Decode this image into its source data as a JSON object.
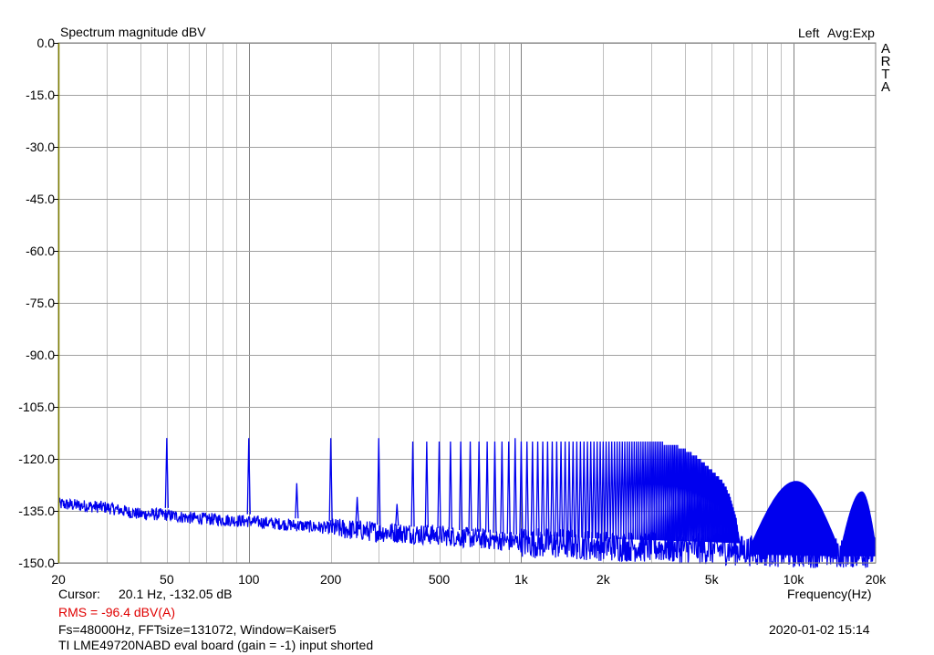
{
  "chart_data": {
    "type": "line",
    "title": "Spectrum magnitude dBV",
    "channel_label": "Left",
    "averaging_label": "Avg:Exp",
    "brand": "ARTA",
    "xlabel": "Frequency(Hz)",
    "x_scale": "log",
    "xlim": [
      20,
      20000
    ],
    "ylim": [
      -150,
      0
    ],
    "grid": true,
    "x_tick_labels": [
      {
        "value": 20,
        "label": "20"
      },
      {
        "value": 50,
        "label": "50"
      },
      {
        "value": 100,
        "label": "100"
      },
      {
        "value": 200,
        "label": "200"
      },
      {
        "value": 500,
        "label": "500"
      },
      {
        "value": 1000,
        "label": "1k"
      },
      {
        "value": 2000,
        "label": "2k"
      },
      {
        "value": 5000,
        "label": "5k"
      },
      {
        "value": 10000,
        "label": "10k"
      },
      {
        "value": 20000,
        "label": "20k"
      }
    ],
    "y_tick_labels": [
      {
        "value": 0,
        "label": "0.0"
      },
      {
        "value": -15,
        "label": "-15.0"
      },
      {
        "value": -30,
        "label": "-30.0"
      },
      {
        "value": -45,
        "label": "-45.0"
      },
      {
        "value": -60,
        "label": "-60.0"
      },
      {
        "value": -75,
        "label": "-75.0"
      },
      {
        "value": -90,
        "label": "-90.0"
      },
      {
        "value": -105,
        "label": "-105.0"
      },
      {
        "value": -120,
        "label": "-120.0"
      },
      {
        "value": -135,
        "label": "-135.0"
      },
      {
        "value": -150,
        "label": "-150.0"
      }
    ],
    "series": [
      {
        "color": "#0000ee",
        "noise_floor": [
          [
            20,
            -133
          ],
          [
            30,
            -134
          ],
          [
            40,
            -136
          ],
          [
            48,
            -136
          ],
          [
            60,
            -137
          ],
          [
            100,
            -138
          ],
          [
            200,
            -140
          ],
          [
            300,
            -141
          ],
          [
            500,
            -142
          ],
          [
            700,
            -143
          ],
          [
            1000,
            -144
          ],
          [
            2000,
            -145
          ],
          [
            5000,
            -146
          ],
          [
            10000,
            -147
          ],
          [
            20000,
            -147
          ]
        ],
        "peaks": [
          {
            "f": 50,
            "db": -114
          },
          {
            "f": 100,
            "db": -114
          },
          {
            "f": 150,
            "db": -127
          },
          {
            "f": 200,
            "db": -114
          },
          {
            "f": 250,
            "db": -131
          },
          {
            "f": 300,
            "db": -114
          },
          {
            "f": 350,
            "db": -133
          },
          {
            "f": 400,
            "db": -115
          },
          {
            "f": 450,
            "db": -115
          },
          {
            "f": 500,
            "db": -115
          },
          {
            "f": 550,
            "db": -115
          },
          {
            "f": 600,
            "db": -115
          },
          {
            "f": 650,
            "db": -115
          },
          {
            "f": 700,
            "db": -115
          },
          {
            "f": 750,
            "db": -115
          },
          {
            "f": 800,
            "db": -115
          },
          {
            "f": 850,
            "db": -115
          },
          {
            "f": 900,
            "db": -115
          },
          {
            "f": 950,
            "db": -114
          },
          {
            "f": 1000,
            "db": -115
          },
          {
            "f": 1050,
            "db": -115
          },
          {
            "f": 1100,
            "db": -115
          },
          {
            "f": 1150,
            "db": -115
          },
          {
            "f": 1200,
            "db": -115
          },
          {
            "f": 1250,
            "db": -115
          },
          {
            "f": 1300,
            "db": -115
          },
          {
            "f": 1350,
            "db": -115
          },
          {
            "f": 1400,
            "db": -115
          },
          {
            "f": 1450,
            "db": -115
          },
          {
            "f": 1500,
            "db": -115
          },
          {
            "f": 1550,
            "db": -115
          },
          {
            "f": 1600,
            "db": -115
          },
          {
            "f": 1650,
            "db": -115
          },
          {
            "f": 1700,
            "db": -115
          },
          {
            "f": 1750,
            "db": -115
          },
          {
            "f": 1800,
            "db": -115
          },
          {
            "f": 1850,
            "db": -115
          },
          {
            "f": 1900,
            "db": -115
          },
          {
            "f": 1950,
            "db": -115
          },
          {
            "f": 2000,
            "db": -115
          },
          {
            "f": 2050,
            "db": -115
          },
          {
            "f": 2100,
            "db": -115
          },
          {
            "f": 2150,
            "db": -115
          },
          {
            "f": 2200,
            "db": -115
          },
          {
            "f": 2250,
            "db": -115
          },
          {
            "f": 2300,
            "db": -115
          },
          {
            "f": 2350,
            "db": -115
          },
          {
            "f": 2400,
            "db": -115
          },
          {
            "f": 2450,
            "db": -115
          },
          {
            "f": 2500,
            "db": -115
          },
          {
            "f": 2550,
            "db": -115
          },
          {
            "f": 2600,
            "db": -115
          },
          {
            "f": 2650,
            "db": -115
          },
          {
            "f": 2700,
            "db": -115
          },
          {
            "f": 2750,
            "db": -115
          },
          {
            "f": 2800,
            "db": -115
          },
          {
            "f": 2850,
            "db": -115
          },
          {
            "f": 2900,
            "db": -115
          },
          {
            "f": 2950,
            "db": -115
          },
          {
            "f": 3000,
            "db": -115
          },
          {
            "f": 3050,
            "db": -115
          },
          {
            "f": 3100,
            "db": -115
          },
          {
            "f": 3150,
            "db": -115
          },
          {
            "f": 3200,
            "db": -115
          },
          {
            "f": 3250,
            "db": -115
          },
          {
            "f": 3300,
            "db": -115
          },
          {
            "f": 3350,
            "db": -116
          },
          {
            "f": 3400,
            "db": -116
          },
          {
            "f": 3450,
            "db": -116
          },
          {
            "f": 3500,
            "db": -116
          },
          {
            "f": 3550,
            "db": -116
          },
          {
            "f": 3600,
            "db": -116
          },
          {
            "f": 3650,
            "db": -116
          },
          {
            "f": 3700,
            "db": -116
          },
          {
            "f": 3750,
            "db": -116
          },
          {
            "f": 3800,
            "db": -117
          },
          {
            "f": 3850,
            "db": -117
          },
          {
            "f": 3900,
            "db": -117
          },
          {
            "f": 3950,
            "db": -117
          },
          {
            "f": 4000,
            "db": -117
          },
          {
            "f": 4050,
            "db": -118
          },
          {
            "f": 4100,
            "db": -118
          },
          {
            "f": 4150,
            "db": -118
          },
          {
            "f": 4200,
            "db": -118
          },
          {
            "f": 4250,
            "db": -119
          },
          {
            "f": 4300,
            "db": -119
          },
          {
            "f": 4350,
            "db": -119
          },
          {
            "f": 4400,
            "db": -119
          },
          {
            "f": 4450,
            "db": -120
          },
          {
            "f": 4500,
            "db": -120
          },
          {
            "f": 4550,
            "db": -120
          },
          {
            "f": 4600,
            "db": -121
          },
          {
            "f": 4650,
            "db": -121
          },
          {
            "f": 4700,
            "db": -121
          },
          {
            "f": 4750,
            "db": -122
          },
          {
            "f": 4800,
            "db": -122
          },
          {
            "f": 4850,
            "db": -122
          },
          {
            "f": 4900,
            "db": -123
          },
          {
            "f": 4950,
            "db": -123
          },
          {
            "f": 5000,
            "db": -123
          },
          {
            "f": 5050,
            "db": -124
          },
          {
            "f": 5100,
            "db": -124
          },
          {
            "f": 5150,
            "db": -124
          },
          {
            "f": 5200,
            "db": -125
          },
          {
            "f": 5250,
            "db": -125
          },
          {
            "f": 5300,
            "db": -125
          },
          {
            "f": 5350,
            "db": -126
          },
          {
            "f": 5400,
            "db": -126
          },
          {
            "f": 5450,
            "db": -126
          },
          {
            "f": 5500,
            "db": -127
          },
          {
            "f": 5550,
            "db": -127
          },
          {
            "f": 5600,
            "db": -128
          },
          {
            "f": 5650,
            "db": -128
          },
          {
            "f": 5700,
            "db": -129
          },
          {
            "f": 5750,
            "db": -130
          },
          {
            "f": 5800,
            "db": -130
          },
          {
            "f": 5850,
            "db": -131
          },
          {
            "f": 5900,
            "db": -132
          },
          {
            "f": 5950,
            "db": -133
          },
          {
            "f": 6000,
            "db": -134
          },
          {
            "f": 6050,
            "db": -135
          },
          {
            "f": 6100,
            "db": -136
          },
          {
            "f": 6150,
            "db": -137
          },
          {
            "f": 6200,
            "db": -139
          },
          {
            "f": 6250,
            "db": -141
          },
          {
            "f": 6300,
            "db": -143
          }
        ],
        "humps": [
          {
            "f1": 7000,
            "f2": 14500,
            "peak_f": 10200,
            "peak_db": -126.5
          },
          {
            "f1": 15000,
            "f2": 20000,
            "peak_f": 17800,
            "peak_db": -129.5
          }
        ]
      }
    ]
  },
  "footer": {
    "cursor_label": "Cursor:",
    "cursor_value": "20.1 Hz, -132.05 dB",
    "rms": "RMS =  -96.4 dBV(A)",
    "params": "Fs=48000Hz, FFTsize=131072, Window=Kaiser5",
    "timestamp": "2020-01-02  15:14",
    "description": "TI LME49720NABD eval board (gain = -1) input shorted"
  }
}
